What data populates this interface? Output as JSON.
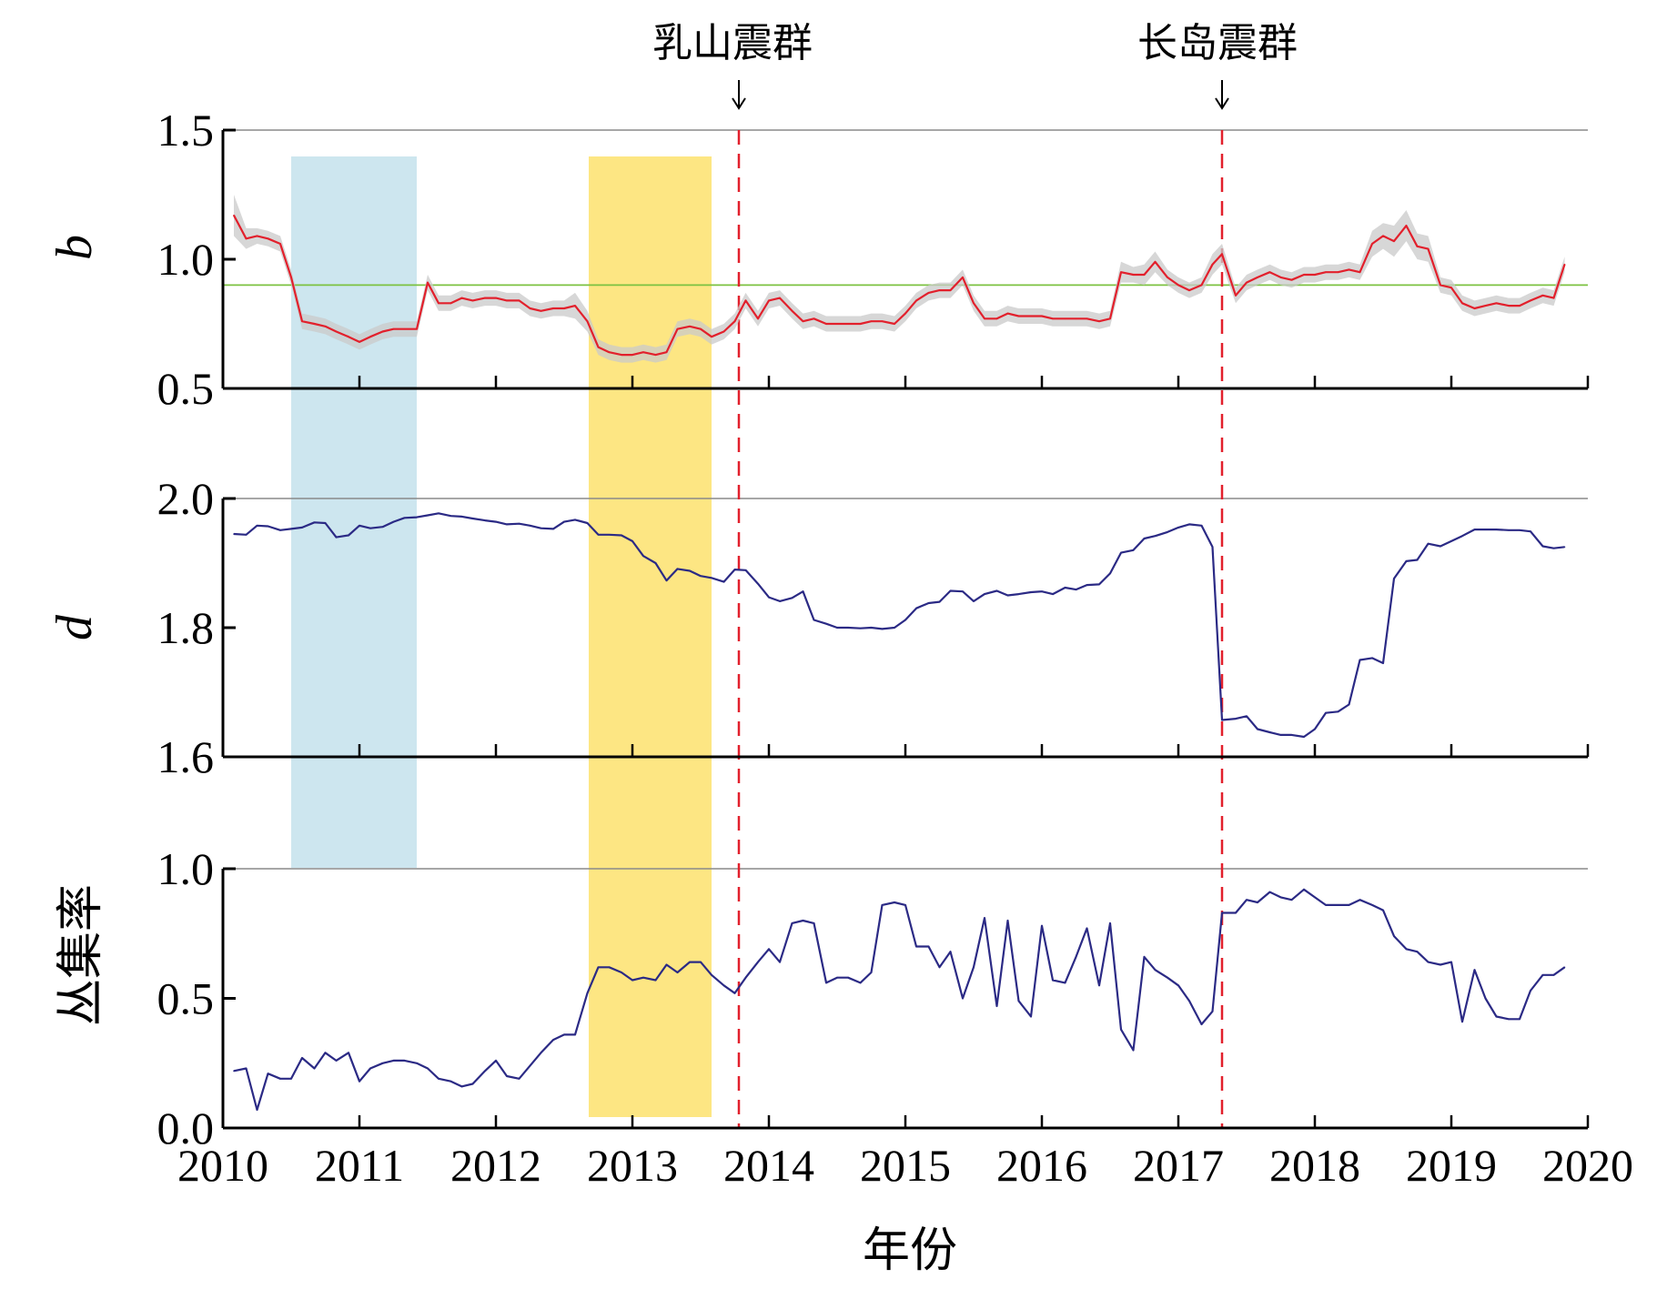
{
  "chart_data": {
    "type": "line",
    "xlabel": "年份",
    "xlim": [
      2010,
      2020
    ],
    "xticks": [
      "2010",
      "2011",
      "2012",
      "2013",
      "2014",
      "2015",
      "2016",
      "2017",
      "2018",
      "2019",
      "2020"
    ],
    "events": [
      {
        "label": "乳山震群",
        "x": 2013.78,
        "color": "#e2202c"
      },
      {
        "label": "长岛震群",
        "x": 2017.32,
        "color": "#e2202c"
      }
    ],
    "shaded_periods": [
      {
        "x0": 2010.5,
        "x1": 2011.42,
        "color": "#cde6ef"
      },
      {
        "x0": 2012.68,
        "x1": 2013.58,
        "color": "#fde683"
      }
    ],
    "panels": [
      {
        "ylabel": "b",
        "ylim": [
          0.5,
          1.5
        ],
        "yticks": [
          "0.5",
          "1.0",
          "1.5"
        ],
        "reference_line": {
          "y": 0.9,
          "color": "#7cc242"
        },
        "series": [
          {
            "color": "#e2202c",
            "band_color": "#c9c9c9",
            "x": [
              2010.08,
              2010.17,
              2010.25,
              2010.33,
              2010.42,
              2010.5,
              2010.58,
              2010.67,
              2010.75,
              2010.83,
              2010.92,
              2011.0,
              2011.08,
              2011.17,
              2011.25,
              2011.33,
              2011.42,
              2011.5,
              2011.58,
              2011.67,
              2011.75,
              2011.83,
              2011.92,
              2012.0,
              2012.08,
              2012.17,
              2012.25,
              2012.33,
              2012.42,
              2012.5,
              2012.58,
              2012.67,
              2012.75,
              2012.83,
              2012.92,
              2013.0,
              2013.08,
              2013.17,
              2013.25,
              2013.33,
              2013.42,
              2013.5,
              2013.58,
              2013.67,
              2013.75,
              2013.83,
              2013.92,
              2014.0,
              2014.08,
              2014.17,
              2014.25,
              2014.33,
              2014.42,
              2014.5,
              2014.58,
              2014.67,
              2014.75,
              2014.83,
              2014.92,
              2015.0,
              2015.08,
              2015.17,
              2015.25,
              2015.33,
              2015.42,
              2015.5,
              2015.58,
              2015.67,
              2015.75,
              2015.83,
              2015.92,
              2016.0,
              2016.08,
              2016.17,
              2016.25,
              2016.33,
              2016.42,
              2016.5,
              2016.58,
              2016.67,
              2016.75,
              2016.83,
              2016.92,
              2017.0,
              2017.08,
              2017.17,
              2017.25,
              2017.32,
              2017.42,
              2017.5,
              2017.58,
              2017.67,
              2017.75,
              2017.83,
              2017.92,
              2018.0,
              2018.08,
              2018.17,
              2018.25,
              2018.33,
              2018.42,
              2018.5,
              2018.58,
              2018.67,
              2018.75,
              2018.83,
              2018.92,
              2019.0,
              2019.08,
              2019.17,
              2019.25,
              2019.33,
              2019.42,
              2019.5,
              2019.58,
              2019.67,
              2019.75,
              2019.83
            ],
            "y": [
              1.17,
              1.08,
              1.09,
              1.08,
              1.06,
              0.93,
              0.76,
              0.75,
              0.74,
              0.72,
              0.7,
              0.68,
              0.7,
              0.72,
              0.73,
              0.73,
              0.73,
              0.91,
              0.83,
              0.83,
              0.85,
              0.84,
              0.85,
              0.85,
              0.84,
              0.84,
              0.81,
              0.8,
              0.81,
              0.81,
              0.82,
              0.76,
              0.66,
              0.64,
              0.63,
              0.63,
              0.64,
              0.63,
              0.64,
              0.73,
              0.74,
              0.73,
              0.7,
              0.72,
              0.76,
              0.84,
              0.77,
              0.84,
              0.85,
              0.8,
              0.76,
              0.77,
              0.75,
              0.75,
              0.75,
              0.75,
              0.76,
              0.76,
              0.75,
              0.79,
              0.84,
              0.87,
              0.88,
              0.88,
              0.93,
              0.83,
              0.77,
              0.77,
              0.79,
              0.78,
              0.78,
              0.78,
              0.77,
              0.77,
              0.77,
              0.77,
              0.76,
              0.77,
              0.95,
              0.94,
              0.94,
              0.99,
              0.93,
              0.9,
              0.88,
              0.9,
              0.98,
              1.02,
              0.86,
              0.91,
              0.93,
              0.95,
              0.93,
              0.92,
              0.94,
              0.94,
              0.95,
              0.95,
              0.96,
              0.95,
              1.06,
              1.09,
              1.07,
              1.13,
              1.05,
              1.04,
              0.9,
              0.89,
              0.83,
              0.81,
              0.82,
              0.83,
              0.82,
              0.82,
              0.84,
              0.86,
              0.85,
              0.98
            ],
            "band": [
              0.08,
              0.04,
              0.03,
              0.03,
              0.03,
              0.03,
              0.03,
              0.03,
              0.03,
              0.03,
              0.03,
              0.03,
              0.03,
              0.03,
              0.03,
              0.03,
              0.03,
              0.03,
              0.03,
              0.03,
              0.03,
              0.03,
              0.03,
              0.03,
              0.03,
              0.03,
              0.03,
              0.03,
              0.03,
              0.03,
              0.05,
              0.04,
              0.03,
              0.03,
              0.03,
              0.03,
              0.03,
              0.03,
              0.03,
              0.03,
              0.03,
              0.03,
              0.03,
              0.03,
              0.03,
              0.03,
              0.03,
              0.03,
              0.03,
              0.03,
              0.03,
              0.03,
              0.03,
              0.03,
              0.03,
              0.03,
              0.03,
              0.03,
              0.03,
              0.03,
              0.03,
              0.03,
              0.03,
              0.03,
              0.03,
              0.03,
              0.03,
              0.03,
              0.03,
              0.03,
              0.03,
              0.03,
              0.03,
              0.03,
              0.03,
              0.03,
              0.03,
              0.03,
              0.04,
              0.03,
              0.04,
              0.04,
              0.03,
              0.03,
              0.03,
              0.03,
              0.04,
              0.04,
              0.03,
              0.03,
              0.03,
              0.03,
              0.03,
              0.03,
              0.03,
              0.03,
              0.03,
              0.03,
              0.03,
              0.03,
              0.05,
              0.05,
              0.06,
              0.06,
              0.05,
              0.05,
              0.03,
              0.03,
              0.03,
              0.03,
              0.03,
              0.03,
              0.03,
              0.03,
              0.03,
              0.03,
              0.03,
              0.03
            ]
          }
        ]
      },
      {
        "ylabel": "d",
        "ylim": [
          1.6,
          2.0
        ],
        "yticks": [
          "1.6",
          "1.8",
          "2.0"
        ],
        "series": [
          {
            "color": "#2b2a85",
            "x": [
              2010.08,
              2010.17,
              2010.25,
              2010.33,
              2010.42,
              2010.5,
              2010.58,
              2010.67,
              2010.75,
              2010.83,
              2010.92,
              2011.0,
              2011.08,
              2011.17,
              2011.25,
              2011.33,
              2011.42,
              2011.5,
              2011.58,
              2011.67,
              2011.75,
              2011.83,
              2011.92,
              2012.0,
              2012.08,
              2012.17,
              2012.25,
              2012.33,
              2012.42,
              2012.5,
              2012.58,
              2012.67,
              2012.75,
              2012.83,
              2012.92,
              2013.0,
              2013.08,
              2013.17,
              2013.25,
              2013.33,
              2013.42,
              2013.5,
              2013.58,
              2013.67,
              2013.75,
              2013.83,
              2013.92,
              2014.0,
              2014.08,
              2014.17,
              2014.25,
              2014.33,
              2014.42,
              2014.5,
              2014.58,
              2014.67,
              2014.75,
              2014.83,
              2014.92,
              2015.0,
              2015.08,
              2015.17,
              2015.25,
              2015.33,
              2015.42,
              2015.5,
              2015.58,
              2015.67,
              2015.75,
              2015.83,
              2015.92,
              2016.0,
              2016.08,
              2016.17,
              2016.25,
              2016.33,
              2016.42,
              2016.5,
              2016.58,
              2016.67,
              2016.75,
              2016.83,
              2016.92,
              2017.0,
              2017.08,
              2017.17,
              2017.25,
              2017.32,
              2017.42,
              2017.5,
              2017.58,
              2017.67,
              2017.75,
              2017.83,
              2017.92,
              2018.0,
              2018.08,
              2018.17,
              2018.25,
              2018.33,
              2018.42,
              2018.5,
              2018.58,
              2018.67,
              2018.75,
              2018.83,
              2018.92,
              2019.0,
              2019.08,
              2019.17,
              2019.25,
              2019.33,
              2019.42,
              2019.5,
              2019.58,
              2019.67,
              2019.75,
              2019.83
            ],
            "y": [
              1.945,
              1.944,
              1.958,
              1.957,
              1.951,
              1.953,
              1.955,
              1.963,
              1.962,
              1.94,
              1.943,
              1.958,
              1.954,
              1.956,
              1.964,
              1.97,
              1.971,
              1.974,
              1.977,
              1.973,
              1.972,
              1.969,
              1.966,
              1.964,
              1.96,
              1.961,
              1.958,
              1.954,
              1.953,
              1.964,
              1.967,
              1.962,
              1.944,
              1.944,
              1.943,
              1.934,
              1.911,
              1.9,
              1.873,
              1.891,
              1.888,
              1.88,
              1.877,
              1.871,
              1.89,
              1.889,
              1.868,
              1.847,
              1.841,
              1.846,
              1.856,
              1.812,
              1.806,
              1.8,
              1.8,
              1.799,
              1.8,
              1.798,
              1.8,
              1.812,
              1.83,
              1.838,
              1.84,
              1.857,
              1.856,
              1.841,
              1.852,
              1.857,
              1.85,
              1.852,
              1.855,
              1.856,
              1.852,
              1.862,
              1.859,
              1.866,
              1.867,
              1.884,
              1.916,
              1.92,
              1.938,
              1.942,
              1.948,
              1.955,
              1.96,
              1.958,
              1.925,
              1.657,
              1.659,
              1.663,
              1.643,
              1.638,
              1.634,
              1.634,
              1.631,
              1.643,
              1.668,
              1.67,
              1.681,
              1.75,
              1.753,
              1.745,
              1.876,
              1.903,
              1.905,
              1.93,
              1.926,
              1.934,
              1.942,
              1.952,
              1.952,
              1.952,
              1.951,
              1.951,
              1.949,
              1.926,
              1.923,
              1.925
            ]
          }
        ]
      },
      {
        "ylabel": "丛集率",
        "ylim": [
          0.0,
          1.0
        ],
        "yticks": [
          "0.0",
          "0.5",
          "1.0"
        ],
        "series": [
          {
            "color": "#2b2a85",
            "x": [
              2010.08,
              2010.17,
              2010.25,
              2010.33,
              2010.42,
              2010.5,
              2010.58,
              2010.67,
              2010.75,
              2010.83,
              2010.92,
              2011.0,
              2011.08,
              2011.17,
              2011.25,
              2011.33,
              2011.42,
              2011.5,
              2011.58,
              2011.67,
              2011.75,
              2011.83,
              2011.92,
              2012.0,
              2012.08,
              2012.17,
              2012.25,
              2012.33,
              2012.42,
              2012.5,
              2012.58,
              2012.67,
              2012.75,
              2012.83,
              2012.92,
              2013.0,
              2013.08,
              2013.17,
              2013.25,
              2013.33,
              2013.42,
              2013.5,
              2013.58,
              2013.67,
              2013.75,
              2013.83,
              2013.92,
              2014.0,
              2014.08,
              2014.17,
              2014.25,
              2014.33,
              2014.42,
              2014.5,
              2014.58,
              2014.67,
              2014.75,
              2014.83,
              2014.92,
              2015.0,
              2015.08,
              2015.17,
              2015.25,
              2015.33,
              2015.42,
              2015.5,
              2015.58,
              2015.67,
              2015.75,
              2015.83,
              2015.92,
              2016.0,
              2016.08,
              2016.17,
              2016.25,
              2016.33,
              2016.42,
              2016.5,
              2016.58,
              2016.67,
              2016.75,
              2016.83,
              2016.92,
              2017.0,
              2017.08,
              2017.17,
              2017.25,
              2017.32,
              2017.42,
              2017.5,
              2017.58,
              2017.67,
              2017.75,
              2017.83,
              2017.92,
              2018.0,
              2018.08,
              2018.17,
              2018.25,
              2018.33,
              2018.42,
              2018.5,
              2018.58,
              2018.67,
              2018.75,
              2018.83,
              2018.92,
              2019.0,
              2019.08,
              2019.17,
              2019.25,
              2019.33,
              2019.42,
              2019.5,
              2019.58,
              2019.67,
              2019.75,
              2019.83
            ],
            "y": [
              0.22,
              0.23,
              0.07,
              0.21,
              0.19,
              0.19,
              0.27,
              0.23,
              0.29,
              0.26,
              0.29,
              0.18,
              0.23,
              0.25,
              0.26,
              0.26,
              0.25,
              0.23,
              0.19,
              0.18,
              0.16,
              0.17,
              0.22,
              0.26,
              0.2,
              0.19,
              0.24,
              0.29,
              0.34,
              0.36,
              0.36,
              0.52,
              0.62,
              0.62,
              0.6,
              0.57,
              0.58,
              0.57,
              0.63,
              0.6,
              0.64,
              0.64,
              0.59,
              0.55,
              0.52,
              0.58,
              0.64,
              0.69,
              0.64,
              0.79,
              0.8,
              0.79,
              0.56,
              0.58,
              0.58,
              0.56,
              0.6,
              0.86,
              0.87,
              0.86,
              0.7,
              0.7,
              0.62,
              0.68,
              0.5,
              0.62,
              0.81,
              0.47,
              0.8,
              0.49,
              0.43,
              0.78,
              0.57,
              0.56,
              0.66,
              0.77,
              0.55,
              0.79,
              0.38,
              0.3,
              0.66,
              0.61,
              0.58,
              0.55,
              0.49,
              0.4,
              0.45,
              0.83,
              0.83,
              0.88,
              0.87,
              0.91,
              0.89,
              0.88,
              0.92,
              0.89,
              0.86,
              0.86,
              0.86,
              0.88,
              0.86,
              0.84,
              0.74,
              0.69,
              0.68,
              0.64,
              0.63,
              0.64,
              0.41,
              0.61,
              0.5,
              0.43,
              0.42,
              0.42,
              0.53,
              0.59,
              0.59,
              0.62
            ]
          }
        ]
      }
    ]
  }
}
